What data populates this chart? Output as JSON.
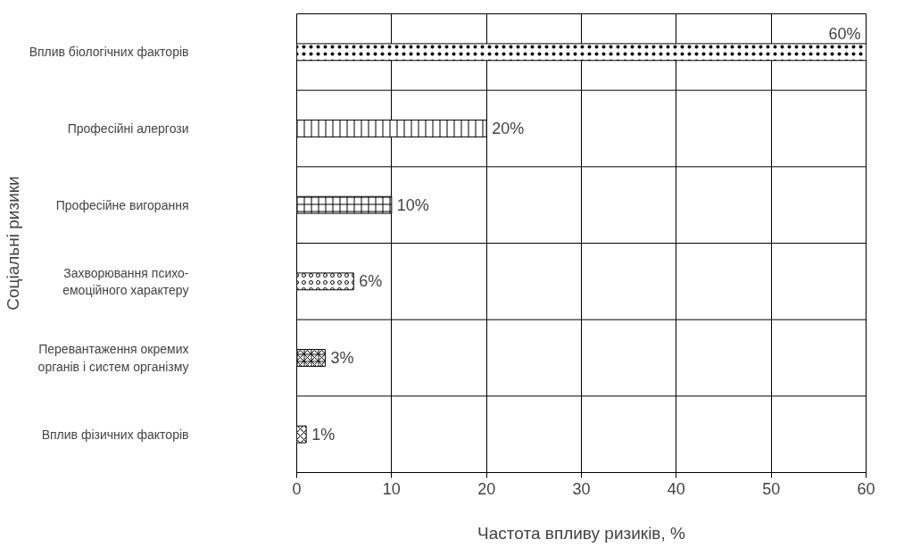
{
  "chart_data": {
    "type": "bar",
    "orientation": "horizontal",
    "xlabel": "Частота впливу ризиків, %",
    "ylabel": "Соціальні ризики",
    "categories": [
      "Вплив біологічних факторів",
      "Професійні алергози",
      "Професійне вигорання",
      "Захворювання психо-\nемоційного характеру",
      "Перевантаження окремих\nорганів і систем організму",
      "Вплив фізичних факторів"
    ],
    "values": [
      60,
      20,
      10,
      6,
      3,
      1
    ],
    "value_labels": [
      "60%",
      "20%",
      "10%",
      "6%",
      "3%",
      "1%"
    ],
    "color": "#ffffff",
    "xlim": [
      0,
      60
    ],
    "xticks": [
      0,
      10,
      20,
      30,
      40,
      50,
      60
    ],
    "grid": true
  }
}
